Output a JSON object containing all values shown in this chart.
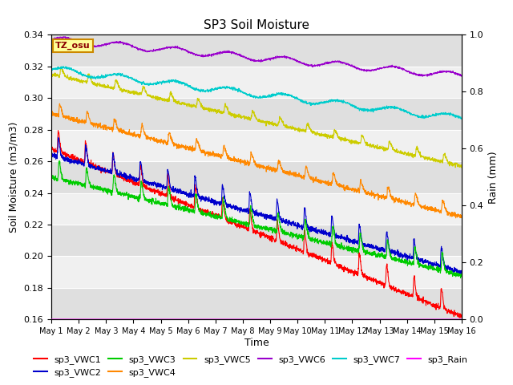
{
  "title": "SP3 Soil Moisture",
  "xlabel": "Time",
  "ylabel_left": "Soil Moisture (m3/m3)",
  "ylabel_right": "Rain (mm)",
  "xlim": [
    0,
    15
  ],
  "ylim_left": [
    0.16,
    0.34
  ],
  "ylim_right": [
    0.0,
    1.0
  ],
  "tz_label": "TZ_osu",
  "colors": {
    "VWC1": "#ff0000",
    "VWC2": "#0000cc",
    "VWC3": "#00cc00",
    "VWC4": "#ff8800",
    "VWC5": "#cccc00",
    "VWC6": "#9900cc",
    "VWC7": "#00cccc",
    "Rain": "#ff00ff"
  },
  "xtick_labels": [
    "May 1",
    "May 2",
    "May 3",
    "May 4",
    "May 5",
    "May 6",
    "May 7",
    "May 8",
    "May 9",
    "May 10",
    "May 11",
    "May 12",
    "May 13",
    "May 14",
    "May 15",
    "May 16"
  ],
  "xtick_positions": [
    0,
    1,
    2,
    3,
    4,
    5,
    6,
    7,
    8,
    9,
    10,
    11,
    12,
    13,
    14,
    15
  ],
  "yticks_left": [
    0.16,
    0.18,
    0.2,
    0.22,
    0.24,
    0.26,
    0.28,
    0.3,
    0.32,
    0.34
  ],
  "yticks_right": [
    0.0,
    0.2,
    0.4,
    0.6,
    0.8,
    1.0
  ],
  "plot_bg_color": "#f0f0f0",
  "band_color": "#d8d8d8",
  "fig_size": [
    6.4,
    4.8
  ],
  "dpi": 100
}
